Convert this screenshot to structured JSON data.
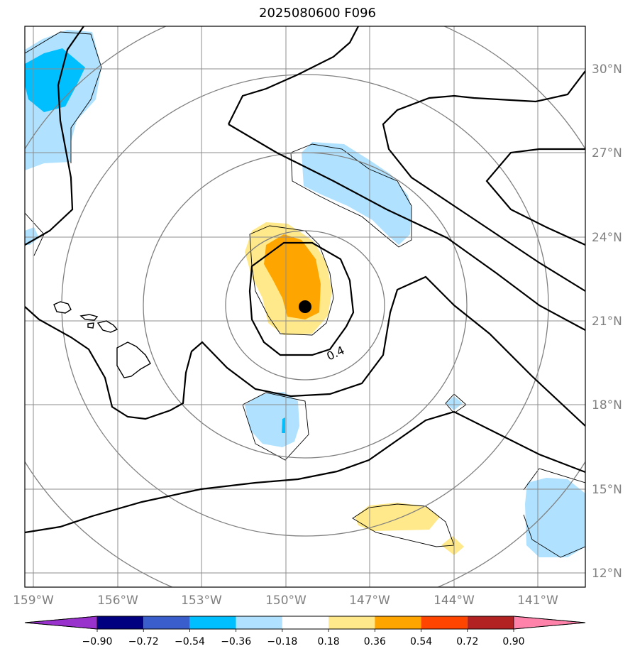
{
  "title": "2025080600 F096",
  "map": {
    "lat_ticks": [
      "30°N",
      "27°N",
      "24°N",
      "21°N",
      "18°N",
      "15°N",
      "12°N"
    ],
    "lon_ticks": [
      "159°W",
      "156°W",
      "153°W",
      "150°W",
      "147°W",
      "144°W",
      "141°W"
    ],
    "contour_label": "0.4",
    "storm_center": {
      "lat": 21.5,
      "lon": -149.3
    },
    "colors": {
      "gridline": "#8c8c8c",
      "tick_label": "#7f7f7f",
      "contour": "#000000",
      "range_ring": "#808080",
      "marker": "#000000"
    }
  },
  "colorbar": {
    "labels": [
      "−0.90",
      "−0.72",
      "−0.54",
      "−0.36",
      "−0.18",
      "0.18",
      "0.36",
      "0.54",
      "0.72",
      "0.90"
    ],
    "colors": [
      "#9932cc",
      "#000080",
      "#3a5fcd",
      "#00bfff",
      "#b0e2ff",
      "#ffffff",
      "#ffe98a",
      "#ffa500",
      "#ff4500",
      "#b22222",
      "#ff82ab"
    ]
  }
}
